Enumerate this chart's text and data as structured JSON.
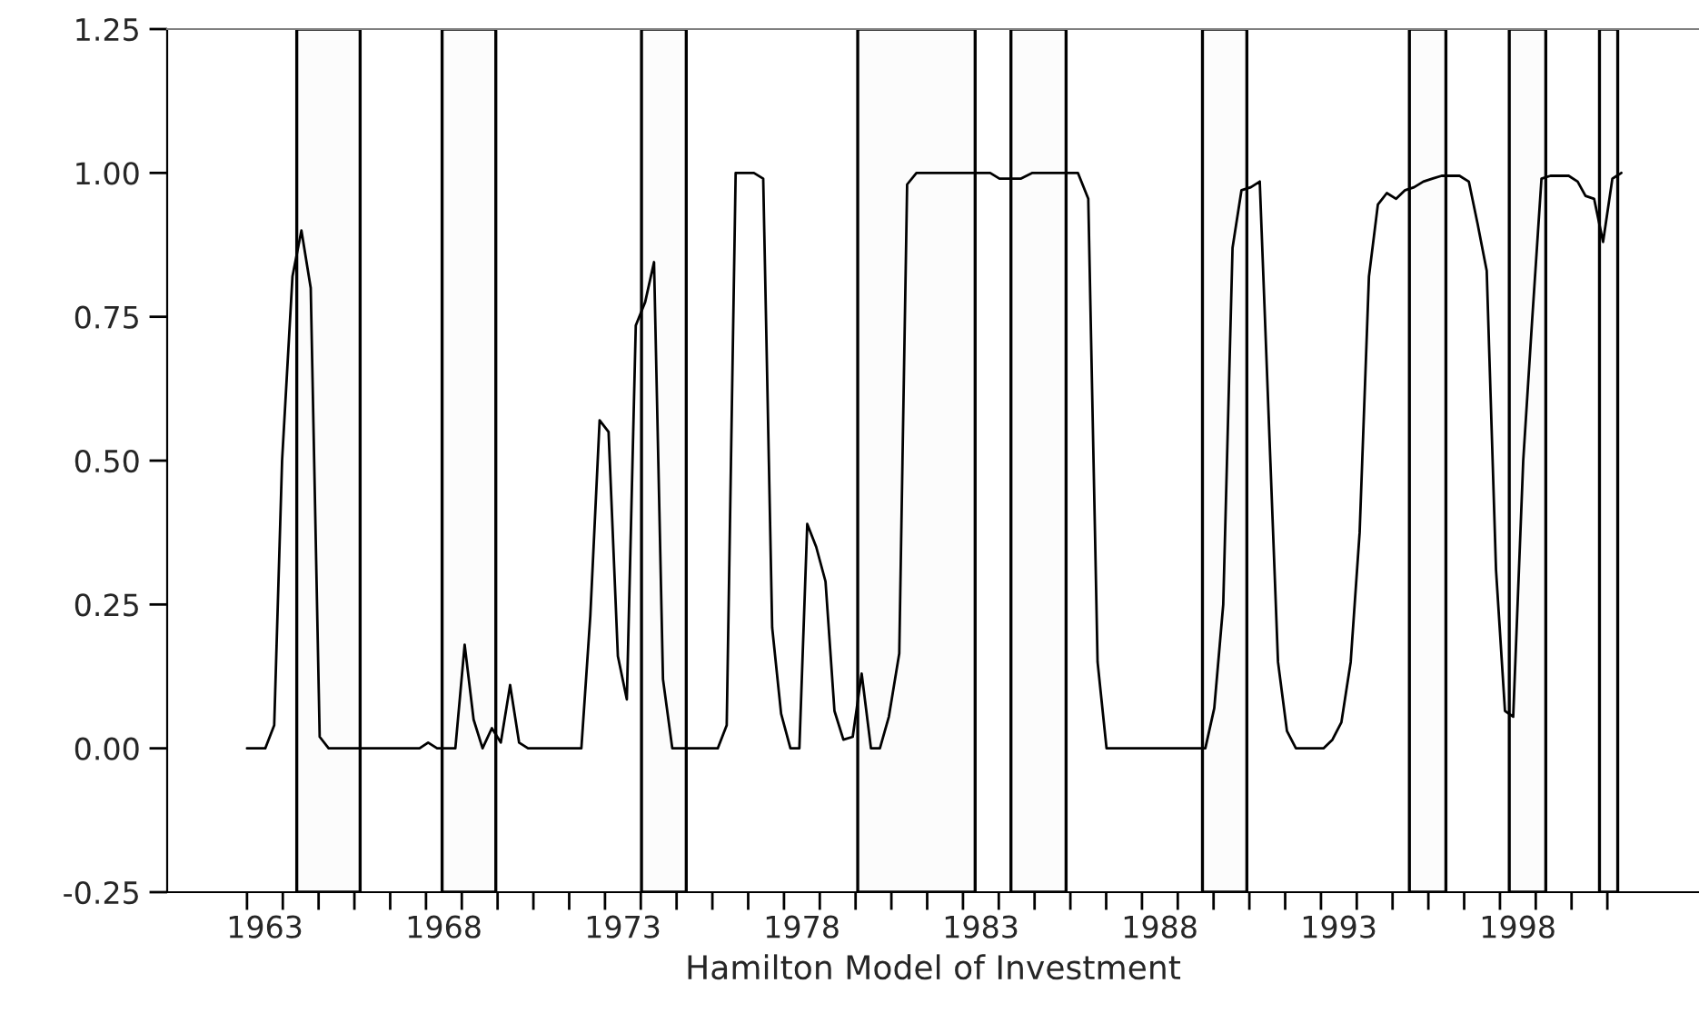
{
  "chart_data": {
    "type": "line",
    "xlabel": "Hamilton Model of Investment",
    "series": [
      {
        "color": "#000000",
        "x": [
          1963.0,
          1963.51,
          1963.76,
          1963.98,
          1964.27,
          1964.52,
          1964.78,
          1965.03,
          1965.28,
          1967.82,
          1968.06,
          1968.31,
          1968.82,
          1969.08,
          1969.33,
          1969.58,
          1969.84,
          1970.09,
          1970.35,
          1970.6,
          1970.85,
          1972.34,
          1972.59,
          1972.85,
          1973.1,
          1973.36,
          1973.61,
          1973.86,
          1974.12,
          1974.37,
          1974.62,
          1974.88,
          1975.39,
          1976.15,
          1976.4,
          1976.65,
          1977.16,
          1977.42,
          1977.67,
          1977.92,
          1978.18,
          1978.43,
          1978.65,
          1978.9,
          1979.16,
          1979.41,
          1979.66,
          1979.92,
          1980.17,
          1980.43,
          1980.68,
          1980.93,
          1981.22,
          1981.44,
          1981.7,
          1983.76,
          1984.02,
          1984.61,
          1984.94,
          1986.21,
          1986.5,
          1986.76,
          1987.01,
          1989.26,
          1989.77,
          1990.02,
          1990.27,
          1990.53,
          1990.78,
          1991.04,
          1991.29,
          1991.8,
          1992.05,
          1992.3,
          1993.07,
          1993.32,
          1993.57,
          1993.83,
          1994.08,
          1994.34,
          1994.59,
          1994.84,
          1995.1,
          1995.35,
          1995.6,
          1995.86,
          1996.11,
          1996.37,
          1996.87,
          1997.13,
          1997.38,
          1997.63,
          1997.89,
          1998.14,
          1998.37,
          1998.65,
          1998.9,
          1999.16,
          1999.41,
          1999.92,
          2000.17,
          2000.39,
          2000.63,
          2000.88,
          2001.14,
          2001.39
        ],
        "values": [
          0.0,
          0.0,
          0.04,
          0.5,
          0.82,
          0.9,
          0.8,
          0.02,
          0.0,
          0.0,
          0.01,
          0.0,
          0.0,
          0.18,
          0.05,
          0.0,
          0.035,
          0.01,
          0.11,
          0.01,
          0.0,
          0.0,
          0.23,
          0.57,
          0.55,
          0.16,
          0.085,
          0.735,
          0.775,
          0.845,
          0.12,
          0.0,
          0.0,
          0.0,
          0.04,
          1.0,
          1.0,
          0.99,
          0.21,
          0.06,
          0.0,
          0.0,
          0.39,
          0.35,
          0.29,
          0.065,
          0.015,
          0.02,
          0.13,
          0.0,
          0.0,
          0.055,
          0.165,
          0.98,
          1.0,
          1.0,
          0.99,
          0.99,
          1.0,
          1.0,
          0.955,
          0.15,
          0.0,
          0.0,
          0.0,
          0.07,
          0.25,
          0.87,
          0.97,
          0.975,
          0.985,
          0.15,
          0.03,
          0.0,
          0.0,
          0.015,
          0.045,
          0.15,
          0.375,
          0.82,
          0.945,
          0.965,
          0.955,
          0.97,
          0.975,
          0.985,
          0.99,
          0.995,
          0.995,
          0.985,
          0.91,
          0.83,
          0.31,
          0.065,
          0.055,
          0.5,
          0.745,
          0.99,
          0.995,
          0.995,
          0.985,
          0.96,
          0.955,
          0.88,
          0.99,
          1.0
        ]
      }
    ],
    "bands": [
      {
        "axis": "x",
        "from": 1964.39,
        "to": 1966.16,
        "color": "#fcfcfc"
      },
      {
        "axis": "x",
        "from": 1968.45,
        "to": 1969.95,
        "color": "#fcfcfc"
      },
      {
        "axis": "x",
        "from": 1974.02,
        "to": 1975.27,
        "color": "#fcfcfc"
      },
      {
        "axis": "x",
        "from": 1980.06,
        "to": 1983.34,
        "color": "#fcfcfc"
      },
      {
        "axis": "x",
        "from": 1984.34,
        "to": 1985.88,
        "color": "#fcfcfc"
      },
      {
        "axis": "x",
        "from": 1989.69,
        "to": 1990.93,
        "color": "#fcfcfc"
      },
      {
        "axis": "x",
        "from": 1995.47,
        "to": 1996.49,
        "color": "#fcfcfc"
      },
      {
        "axis": "x",
        "from": 1998.26,
        "to": 1999.28,
        "color": "#fcfcfc"
      },
      {
        "axis": "x",
        "from": 2000.78,
        "to": 2001.29,
        "color": "#fcfcfc"
      }
    ],
    "xlim": [
      1960.77,
      2003.56
    ],
    "xticks": [
      {
        "value": 1963,
        "label": null
      },
      {
        "value": 1963.5,
        "label": "1963"
      },
      {
        "value": 1964,
        "label": null
      },
      {
        "value": 1965,
        "label": null
      },
      {
        "value": 1966,
        "label": null
      },
      {
        "value": 1967,
        "label": null
      },
      {
        "value": 1968,
        "label": null
      },
      {
        "value": 1968.5,
        "label": "1968"
      },
      {
        "value": 1969,
        "label": null
      },
      {
        "value": 1970,
        "label": null
      },
      {
        "value": 1971,
        "label": null
      },
      {
        "value": 1972,
        "label": null
      },
      {
        "value": 1973,
        "label": null
      },
      {
        "value": 1973.5,
        "label": "1973"
      },
      {
        "value": 1974,
        "label": null
      },
      {
        "value": 1975,
        "label": null
      },
      {
        "value": 1976,
        "label": null
      },
      {
        "value": 1977,
        "label": null
      },
      {
        "value": 1978,
        "label": null
      },
      {
        "value": 1978.5,
        "label": "1978"
      },
      {
        "value": 1979,
        "label": null
      },
      {
        "value": 1980,
        "label": null
      },
      {
        "value": 1981,
        "label": null
      },
      {
        "value": 1982,
        "label": null
      },
      {
        "value": 1983,
        "label": null
      },
      {
        "value": 1983.5,
        "label": "1983"
      },
      {
        "value": 1984,
        "label": null
      },
      {
        "value": 1985,
        "label": null
      },
      {
        "value": 1986,
        "label": null
      },
      {
        "value": 1987,
        "label": null
      },
      {
        "value": 1988,
        "label": null
      },
      {
        "value": 1988.5,
        "label": "1988"
      },
      {
        "value": 1989,
        "label": null
      },
      {
        "value": 1990,
        "label": null
      },
      {
        "value": 1991,
        "label": null
      },
      {
        "value": 1992,
        "label": null
      },
      {
        "value": 1993,
        "label": null
      },
      {
        "value": 1993.5,
        "label": "1993"
      },
      {
        "value": 1994,
        "label": null
      },
      {
        "value": 1995,
        "label": null
      },
      {
        "value": 1996,
        "label": null
      },
      {
        "value": 1997,
        "label": null
      },
      {
        "value": 1998,
        "label": null
      },
      {
        "value": 1998.5,
        "label": "1998"
      },
      {
        "value": 1999,
        "label": null
      },
      {
        "value": 2000,
        "label": null
      },
      {
        "value": 2001,
        "label": null
      }
    ],
    "ylim": [
      -0.25,
      1.25
    ],
    "yticks": [
      {
        "value": -0.25,
        "label": "-0.25"
      },
      {
        "value": 0,
        "label": "0.00"
      },
      {
        "value": 0.25,
        "label": "0.25"
      },
      {
        "value": 0.5,
        "label": "0.50"
      },
      {
        "value": 0.75,
        "label": "0.75"
      },
      {
        "value": 1,
        "label": "1.00"
      },
      {
        "value": 1.25,
        "label": "1.25"
      }
    ],
    "grid": false,
    "legend": false,
    "marker": "none",
    "line_style": "solid"
  }
}
